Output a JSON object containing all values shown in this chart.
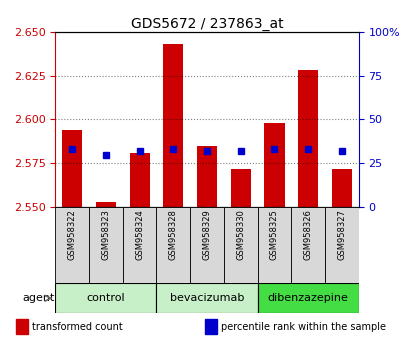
{
  "title": "GDS5672 / 237863_at",
  "samples": [
    "GSM958322",
    "GSM958323",
    "GSM958324",
    "GSM958328",
    "GSM958329",
    "GSM958330",
    "GSM958325",
    "GSM958326",
    "GSM958327"
  ],
  "transformed_counts": [
    2.594,
    2.553,
    2.581,
    2.643,
    2.585,
    2.572,
    2.598,
    2.628,
    2.572
  ],
  "percentile_ranks": [
    33,
    30,
    32,
    33,
    32,
    32,
    33,
    33,
    32
  ],
  "ylim": [
    2.55,
    2.65
  ],
  "yticks": [
    2.55,
    2.575,
    2.6,
    2.625,
    2.65
  ],
  "right_yticks": [
    0,
    25,
    50,
    75,
    100
  ],
  "right_ylim": [
    0,
    100
  ],
  "groups": [
    {
      "label": "control",
      "indices": [
        0,
        1,
        2
      ],
      "color": "#c8f0c8"
    },
    {
      "label": "bevacizumab",
      "indices": [
        3,
        4,
        5
      ],
      "color": "#c8f0c8"
    },
    {
      "label": "dibenzazepine",
      "indices": [
        6,
        7,
        8
      ],
      "color": "#44dd44"
    }
  ],
  "bar_color": "#cc0000",
  "dot_color": "#0000cc",
  "bar_width": 0.6,
  "dot_size": 18,
  "bar_bottom": 2.55,
  "grid_color": "#000000",
  "grid_alpha": 0.4,
  "tick_color_left": "#cc0000",
  "tick_color_right": "#0000cc",
  "agent_label": "agent",
  "bg_color": "#d8d8d8",
  "legend_items": [
    {
      "label": "transformed count",
      "color": "#cc0000"
    },
    {
      "label": "percentile rank within the sample",
      "color": "#0000cc"
    }
  ]
}
